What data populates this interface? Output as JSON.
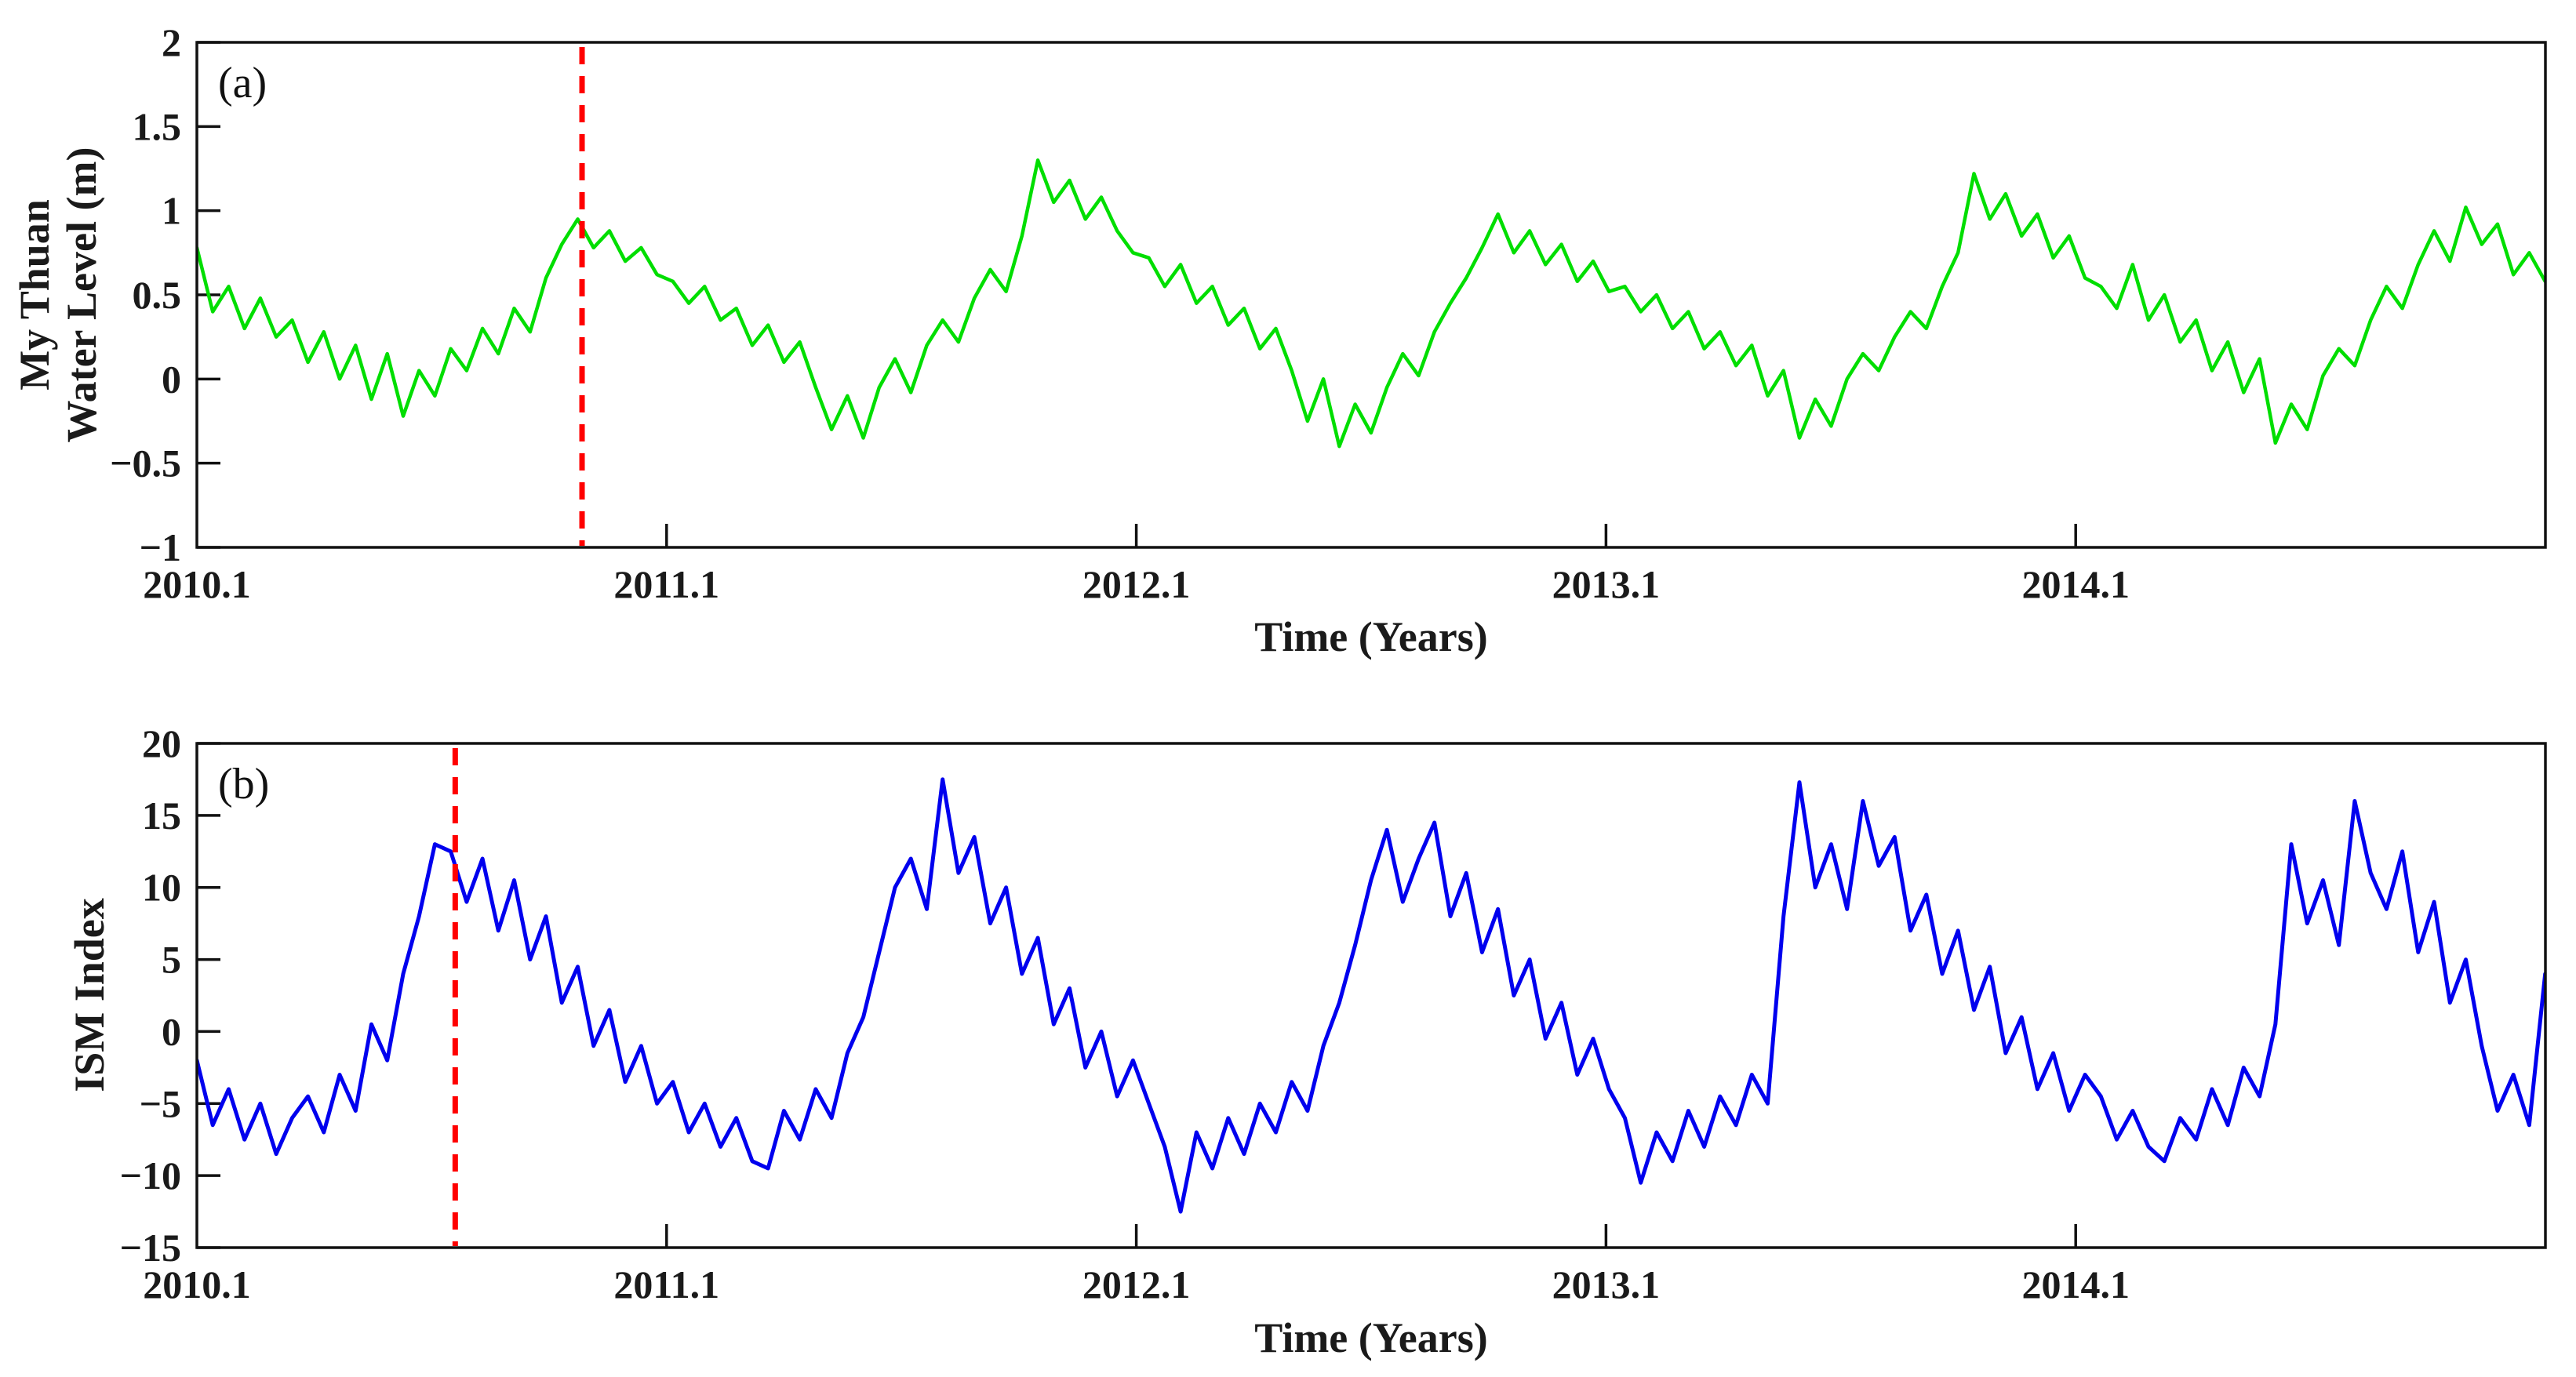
{
  "figure": {
    "panels": [
      {
        "tag": "(a)",
        "ylabel_lines": [
          "My Thuan",
          "Water Level (m)"
        ],
        "xlabel": "Time (Years)"
      },
      {
        "tag": "(b)",
        "ylabel_lines": [
          "ISM Index"
        ],
        "xlabel": "Time (Years)"
      }
    ]
  },
  "chart_data": [
    {
      "type": "line",
      "panel": "a",
      "title": "",
      "ylabel": "My Thuan Water Level (m)",
      "xlabel": "Time (Years)",
      "xlim": [
        2010.1,
        2015.1
      ],
      "ylim": [
        -1,
        2
      ],
      "grid": false,
      "legend": "none",
      "xticks": [
        2010.1,
        2011.1,
        2012.1,
        2013.1,
        2014.1
      ],
      "xtick_labels": [
        "2010.1",
        "2011.1",
        "2012.1",
        "2013.1",
        "2014.1"
      ],
      "yticks": [
        2,
        1.5,
        1,
        0.5,
        0,
        -0.5,
        -1
      ],
      "ytick_labels": [
        "2",
        "1.5",
        "1",
        "0.5",
        "0",
        "−0.5",
        "−1"
      ],
      "line_color": "#00de00",
      "line_width": 4.5,
      "marker_line": {
        "x": 2010.92,
        "color": "#ff0000",
        "style": "dashed"
      },
      "series": [
        {
          "name": "My Thuan water level (m)",
          "x_start": 2010.1,
          "x_step": 0.03378,
          "values": [
            0.78,
            0.4,
            0.55,
            0.3,
            0.48,
            0.25,
            0.35,
            0.1,
            0.28,
            0.0,
            0.2,
            -0.12,
            0.15,
            -0.22,
            0.05,
            -0.1,
            0.18,
            0.05,
            0.3,
            0.15,
            0.42,
            0.28,
            0.6,
            0.8,
            0.95,
            0.78,
            0.88,
            0.7,
            0.78,
            0.62,
            0.58,
            0.45,
            0.55,
            0.35,
            0.42,
            0.2,
            0.32,
            0.1,
            0.22,
            -0.05,
            -0.3,
            -0.1,
            -0.35,
            -0.05,
            0.12,
            -0.08,
            0.2,
            0.35,
            0.22,
            0.48,
            0.65,
            0.52,
            0.85,
            1.3,
            1.05,
            1.18,
            0.95,
            1.08,
            0.88,
            0.75,
            0.72,
            0.55,
            0.68,
            0.45,
            0.55,
            0.32,
            0.42,
            0.18,
            0.3,
            0.05,
            -0.25,
            0.0,
            -0.4,
            -0.15,
            -0.32,
            -0.05,
            0.15,
            0.02,
            0.28,
            0.45,
            0.6,
            0.78,
            0.98,
            0.75,
            0.88,
            0.68,
            0.8,
            0.58,
            0.7,
            0.52,
            0.55,
            0.4,
            0.5,
            0.3,
            0.4,
            0.18,
            0.28,
            0.08,
            0.2,
            -0.1,
            0.05,
            -0.35,
            -0.12,
            -0.28,
            0.0,
            0.15,
            0.05,
            0.25,
            0.4,
            0.3,
            0.55,
            0.75,
            1.22,
            0.95,
            1.1,
            0.85,
            0.98,
            0.72,
            0.85,
            0.6,
            0.55,
            0.42,
            0.68,
            0.35,
            0.5,
            0.22,
            0.35,
            0.05,
            0.22,
            -0.08,
            0.12,
            -0.38,
            -0.15,
            -0.3,
            0.02,
            0.18,
            0.08,
            0.35,
            0.55,
            0.42,
            0.68,
            0.88,
            0.7,
            1.02,
            0.8,
            0.92,
            0.62,
            0.75,
            0.58
          ]
        }
      ]
    },
    {
      "type": "line",
      "panel": "b",
      "title": "",
      "ylabel": "ISM Index",
      "xlabel": "Time (Years)",
      "xlim": [
        2010.1,
        2015.1
      ],
      "ylim": [
        -15,
        20
      ],
      "grid": false,
      "legend": "none",
      "xticks": [
        2010.1,
        2011.1,
        2012.1,
        2013.1,
        2014.1
      ],
      "xtick_labels": [
        "2010.1",
        "2011.1",
        "2012.1",
        "2013.1",
        "2014.1"
      ],
      "yticks": [
        20,
        15,
        10,
        5,
        0,
        -5,
        -10,
        -15
      ],
      "ytick_labels": [
        "20",
        "15",
        "10",
        "5",
        "0",
        "−5",
        "−10",
        "−15"
      ],
      "line_color": "#0000ee",
      "line_width": 5,
      "marker_line": {
        "x": 2010.65,
        "color": "#ff0000",
        "style": "dashed"
      },
      "series": [
        {
          "name": "ISM Index",
          "x_start": 2010.1,
          "x_step": 0.03378,
          "values": [
            -2.0,
            -6.5,
            -4.0,
            -7.5,
            -5.0,
            -8.5,
            -6.0,
            -4.5,
            -7.0,
            -3.0,
            -5.5,
            0.5,
            -2.0,
            4.0,
            8.0,
            13.0,
            12.5,
            9.0,
            12.0,
            7.0,
            10.5,
            5.0,
            8.0,
            2.0,
            4.5,
            -1.0,
            1.5,
            -3.5,
            -1.0,
            -5.0,
            -3.5,
            -7.0,
            -5.0,
            -8.0,
            -6.0,
            -9.0,
            -9.5,
            -5.5,
            -7.5,
            -4.0,
            -6.0,
            -1.5,
            1.0,
            5.5,
            10.0,
            12.0,
            8.5,
            17.5,
            11.0,
            13.5,
            7.5,
            10.0,
            4.0,
            6.5,
            0.5,
            3.0,
            -2.5,
            0.0,
            -4.5,
            -2.0,
            -5.0,
            -8.0,
            -12.5,
            -7.0,
            -9.5,
            -6.0,
            -8.5,
            -5.0,
            -7.0,
            -3.5,
            -5.5,
            -1.0,
            2.0,
            6.0,
            10.5,
            14.0,
            9.0,
            12.0,
            14.5,
            8.0,
            11.0,
            5.5,
            8.5,
            2.5,
            5.0,
            -0.5,
            2.0,
            -3.0,
            -0.5,
            -4.0,
            -6.0,
            -10.5,
            -7.0,
            -9.0,
            -5.5,
            -8.0,
            -4.5,
            -6.5,
            -3.0,
            -5.0,
            8.0,
            17.3,
            10.0,
            13.0,
            8.5,
            16.0,
            11.5,
            13.5,
            7.0,
            9.5,
            4.0,
            7.0,
            1.5,
            4.5,
            -1.5,
            1.0,
            -4.0,
            -1.5,
            -5.5,
            -3.0,
            -4.5,
            -7.5,
            -5.5,
            -8.0,
            -9.0,
            -6.0,
            -7.5,
            -4.0,
            -6.5,
            -2.5,
            -4.5,
            0.5,
            13.0,
            7.5,
            10.5,
            6.0,
            16.0,
            11.0,
            8.5,
            12.5,
            5.5,
            9.0,
            2.0,
            5.0,
            -1.0,
            -5.5,
            -3.0,
            -6.5,
            4.0
          ]
        }
      ]
    }
  ]
}
